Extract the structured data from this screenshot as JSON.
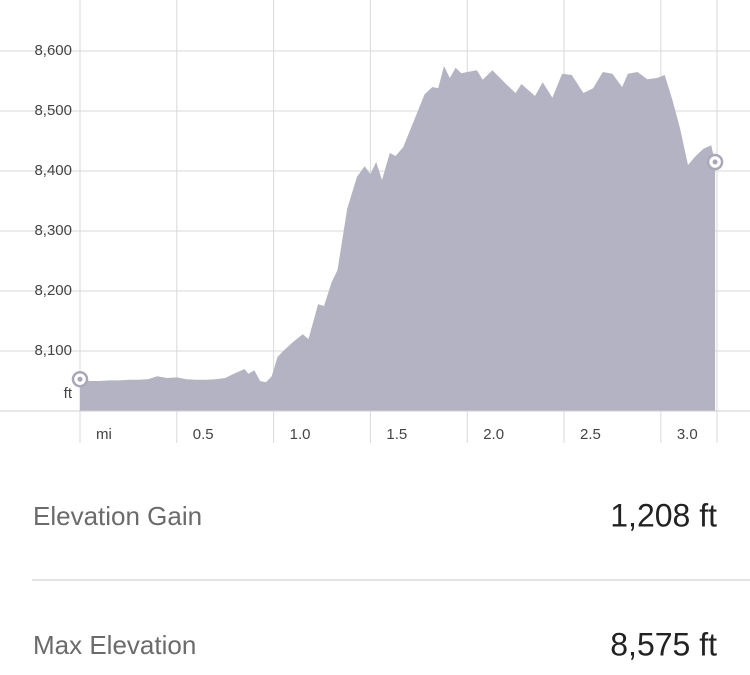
{
  "chart_data": {
    "type": "area",
    "x": [
      0,
      0.05,
      0.1,
      0.15,
      0.2,
      0.25,
      0.3,
      0.35,
      0.4,
      0.45,
      0.5,
      0.55,
      0.6,
      0.65,
      0.7,
      0.75,
      0.8,
      0.85,
      0.87,
      0.9,
      0.93,
      0.96,
      0.99,
      1.02,
      1.05,
      1.1,
      1.15,
      1.18,
      1.23,
      1.26,
      1.3,
      1.33,
      1.38,
      1.43,
      1.47,
      1.5,
      1.53,
      1.56,
      1.6,
      1.63,
      1.67,
      1.72,
      1.78,
      1.82,
      1.85,
      1.88,
      1.91,
      1.94,
      1.97,
      2.0,
      2.05,
      2.08,
      2.13,
      2.2,
      2.25,
      2.28,
      2.35,
      2.39,
      2.44,
      2.49,
      2.54,
      2.6,
      2.65,
      2.7,
      2.75,
      2.8,
      2.83,
      2.88,
      2.93,
      2.98,
      3.02,
      3.06,
      3.1,
      3.14,
      3.18,
      3.22,
      3.26,
      3.28
    ],
    "values": [
      8053,
      8050,
      8050,
      8051,
      8051,
      8052,
      8052,
      8053,
      8058,
      8055,
      8056,
      8053,
      8052,
      8052,
      8053,
      8055,
      8063,
      8070,
      8062,
      8068,
      8050,
      8048,
      8058,
      8090,
      8100,
      8115,
      8128,
      8120,
      8178,
      8175,
      8215,
      8235,
      8337,
      8390,
      8408,
      8395,
      8415,
      8385,
      8430,
      8425,
      8440,
      8480,
      8528,
      8540,
      8538,
      8575,
      8555,
      8572,
      8563,
      8565,
      8568,
      8552,
      8568,
      8545,
      8530,
      8545,
      8525,
      8548,
      8522,
      8562,
      8560,
      8530,
      8538,
      8565,
      8562,
      8540,
      8562,
      8565,
      8553,
      8555,
      8560,
      8518,
      8470,
      8410,
      8425,
      8437,
      8443,
      8415
    ],
    "color": "#b4b3c4",
    "xlim": [
      0,
      3.29
    ],
    "xticks": [
      {
        "value": 0,
        "label": "mi"
      },
      0.5,
      {
        "value": 1,
        "label": "1.0"
      },
      1.5,
      {
        "value": 2,
        "label": "2.0"
      },
      2.5,
      {
        "value": 3,
        "label": "3.0"
      }
    ],
    "ylim": [
      8000,
      8685
    ],
    "yticks": [
      {
        "value": 8100,
        "label": "8,100"
      },
      {
        "value": 8200,
        "label": "8,200"
      },
      {
        "value": 8300,
        "label": "8,300"
      },
      {
        "value": 8400,
        "label": "8,400"
      },
      {
        "value": 8500,
        "label": "8,500"
      },
      {
        "value": 8600,
        "label": "8,600"
      }
    ],
    "y_unit": "ft",
    "grid": true
  },
  "stats": [
    {
      "label": "Elevation Gain",
      "value": "1,208 ft"
    },
    {
      "label": "Max Elevation",
      "value": "8,575 ft"
    }
  ]
}
